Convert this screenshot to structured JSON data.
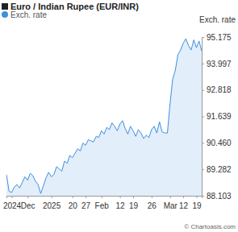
{
  "chart_data": {
    "type": "area",
    "title": "Euro / Indian Rupee (EUR/INR)",
    "y_label": "Exch. rate",
    "annotations": [
      "© Chartoasis.com"
    ],
    "legend": "top-left",
    "grid": false,
    "categories": [
      null,
      null,
      "2024",
      null,
      null,
      null,
      null,
      null,
      "Dec",
      null,
      null,
      null,
      null,
      null,
      null,
      null,
      null,
      "2025",
      null,
      null,
      null,
      null,
      null,
      null,
      null,
      "20",
      null,
      null,
      null,
      null,
      "27",
      null,
      null,
      null,
      null,
      null,
      "Feb",
      null,
      null,
      null,
      null,
      null,
      null,
      "12",
      null,
      null,
      null,
      null,
      "19",
      null,
      null,
      null,
      null,
      null,
      null,
      "26",
      null,
      null,
      null,
      null,
      null,
      null,
      "Mar",
      null,
      null,
      null,
      null,
      "12",
      null,
      null,
      null,
      null,
      "19",
      null,
      null
    ],
    "series": [
      {
        "name": "Exch. rate",
        "color": "#3d8fe0",
        "values": [
          89.05,
          88.3,
          88.25,
          88.5,
          88.6,
          88.45,
          88.7,
          88.95,
          88.8,
          89.1,
          89.0,
          88.75,
          88.6,
          88.2,
          88.55,
          88.9,
          89.15,
          88.95,
          89.05,
          89.4,
          89.3,
          89.2,
          89.65,
          89.55,
          89.9,
          89.8,
          90.0,
          90.2,
          90.1,
          90.45,
          90.35,
          90.6,
          90.55,
          90.5,
          90.75,
          90.7,
          91.0,
          90.85,
          91.15,
          91.05,
          91.35,
          91.2,
          91.0,
          91.3,
          91.45,
          91.1,
          90.85,
          91.2,
          91.0,
          90.75,
          91.05,
          90.9,
          90.65,
          90.8,
          90.7,
          91.05,
          91.2,
          90.9,
          91.4,
          90.95,
          90.9,
          90.9,
          92.2,
          93.3,
          93.7,
          94.4,
          94.6,
          94.9,
          95.1,
          94.8,
          94.6,
          95.05,
          94.7,
          95.0,
          94.55
        ]
      }
    ],
    "ylim": [
      88.103,
      95.175
    ],
    "yticks": [
      88.103,
      89.282,
      {
        "value": 90.46,
        "label": "90.460"
      },
      91.639,
      92.818,
      93.997,
      95.175
    ]
  }
}
